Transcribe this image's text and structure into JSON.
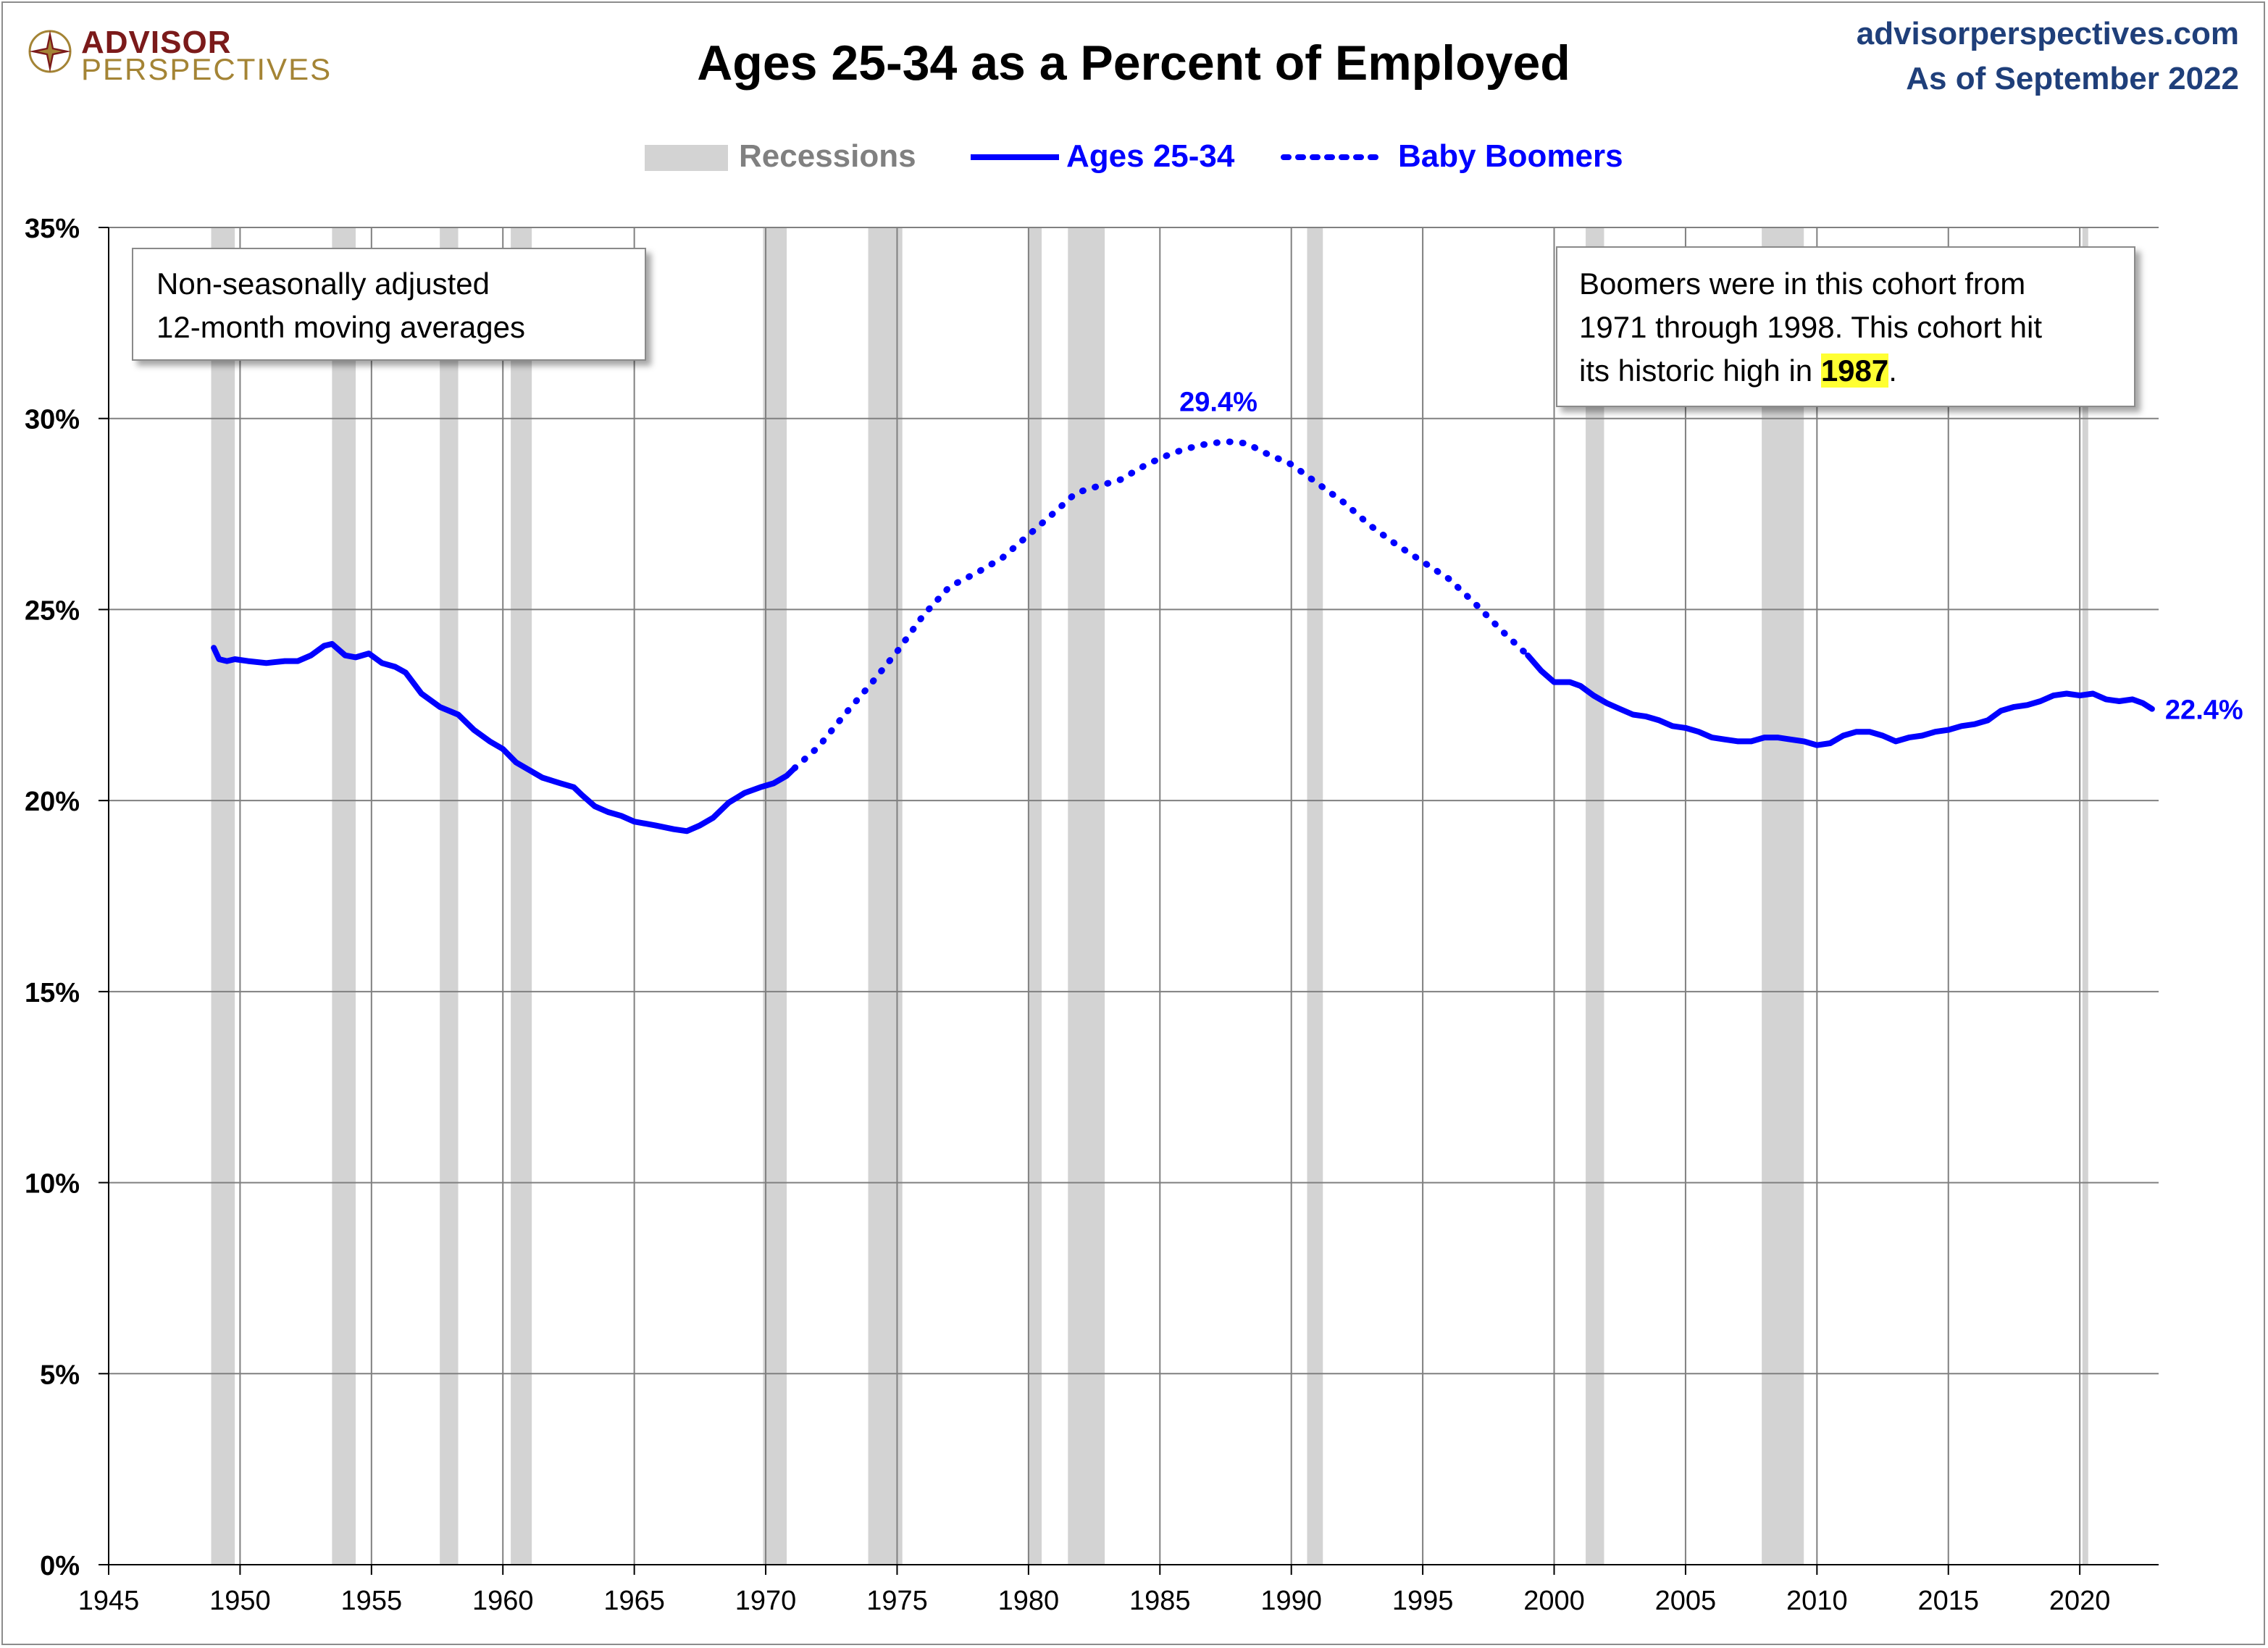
{
  "logo": {
    "line1": "ADVISOR",
    "line2": "PERSPECTIVES",
    "color_line1": "#7b1a1a",
    "color_line2": "#a48435"
  },
  "header": {
    "source": "advisorperspectives.com",
    "as_of": "As of September 2022",
    "source_color": "#1f3f7a"
  },
  "notes": {
    "left": [
      "Non-seasonally adjusted",
      "12-month moving averages"
    ],
    "right_lines": [
      "Boomers were in this cohort from",
      "1971 through 1998. This cohort hit"
    ],
    "right_last_prefix": "its historic high in ",
    "right_highlight": "1987",
    "right_last_suffix": "."
  },
  "colors": {
    "series": "#0000ff",
    "recession": "#d3d3d3",
    "grid": "#808080",
    "axis_text": "#000000",
    "legend_recession_text": "#808080"
  },
  "chart_data": {
    "type": "line",
    "title": "Ages 25-34 as a Percent of Employed",
    "xlim": [
      1945,
      2023
    ],
    "ylim": [
      0,
      35
    ],
    "x_ticks": [
      1945,
      1950,
      1955,
      1960,
      1965,
      1970,
      1975,
      1980,
      1985,
      1990,
      1995,
      2000,
      2005,
      2010,
      2015,
      2020
    ],
    "y_ticks": [
      0,
      5,
      10,
      15,
      20,
      25,
      30,
      35
    ],
    "y_tick_labels": [
      "0%",
      "5%",
      "10%",
      "15%",
      "20%",
      "25%",
      "30%",
      "35%"
    ],
    "grid": true,
    "legend_position": "top-center",
    "legend": [
      {
        "label": "Recessions",
        "kind": "band"
      },
      {
        "label": "Ages 25-34",
        "kind": "solid"
      },
      {
        "label": "Baby Boomers",
        "kind": "dotted"
      }
    ],
    "recessions": [
      [
        1948.9,
        1949.8
      ],
      [
        1953.5,
        1954.4
      ],
      [
        1957.6,
        1958.3
      ],
      [
        1960.3,
        1961.1
      ],
      [
        1969.9,
        1970.8
      ],
      [
        1973.9,
        1975.2
      ],
      [
        1980.0,
        1980.5
      ],
      [
        1981.5,
        1982.9
      ],
      [
        1990.6,
        1991.2
      ],
      [
        2001.2,
        2001.9
      ],
      [
        2007.9,
        2009.5
      ],
      [
        2020.1,
        2020.3
      ]
    ],
    "series": [
      {
        "name": "Ages 25-34",
        "style": "solid",
        "points": [
          [
            1949.0,
            24.0
          ],
          [
            1949.2,
            23.7
          ],
          [
            1949.5,
            23.65
          ],
          [
            1949.8,
            23.7
          ],
          [
            1950.3,
            23.65
          ],
          [
            1951.0,
            23.6
          ],
          [
            1951.7,
            23.65
          ],
          [
            1952.2,
            23.65
          ],
          [
            1952.7,
            23.8
          ],
          [
            1953.2,
            24.05
          ],
          [
            1953.5,
            24.1
          ],
          [
            1954.0,
            23.8
          ],
          [
            1954.4,
            23.75
          ],
          [
            1954.9,
            23.85
          ],
          [
            1955.4,
            23.6
          ],
          [
            1955.9,
            23.5
          ],
          [
            1956.3,
            23.35
          ],
          [
            1956.9,
            22.8
          ],
          [
            1957.6,
            22.45
          ],
          [
            1958.3,
            22.25
          ],
          [
            1958.9,
            21.85
          ],
          [
            1959.5,
            21.55
          ],
          [
            1960.0,
            21.35
          ],
          [
            1960.5,
            21.0
          ],
          [
            1961.0,
            20.8
          ],
          [
            1961.5,
            20.6
          ],
          [
            1962.2,
            20.45
          ],
          [
            1962.7,
            20.35
          ],
          [
            1963.0,
            20.15
          ],
          [
            1963.5,
            19.85
          ],
          [
            1964.0,
            19.7
          ],
          [
            1964.5,
            19.6
          ],
          [
            1965.0,
            19.45
          ],
          [
            1965.8,
            19.35
          ],
          [
            1966.5,
            19.25
          ],
          [
            1967.0,
            19.2
          ],
          [
            1967.5,
            19.35
          ],
          [
            1968.0,
            19.55
          ],
          [
            1968.6,
            19.95
          ],
          [
            1969.2,
            20.2
          ],
          [
            1969.8,
            20.35
          ],
          [
            1970.3,
            20.45
          ],
          [
            1970.8,
            20.65
          ],
          [
            1971.1,
            20.85
          ]
        ]
      },
      {
        "name": "Baby Boomers",
        "style": "dotted",
        "points": [
          [
            1971.1,
            20.85
          ],
          [
            1972.0,
            21.4
          ],
          [
            1973.0,
            22.25
          ],
          [
            1974.0,
            23.05
          ],
          [
            1975.0,
            23.9
          ],
          [
            1976.0,
            24.85
          ],
          [
            1977.0,
            25.6
          ],
          [
            1978.0,
            25.95
          ],
          [
            1979.0,
            26.35
          ],
          [
            1980.0,
            26.95
          ],
          [
            1981.0,
            27.55
          ],
          [
            1981.8,
            28.05
          ],
          [
            1982.5,
            28.2
          ],
          [
            1983.5,
            28.4
          ],
          [
            1984.5,
            28.8
          ],
          [
            1985.5,
            29.1
          ],
          [
            1986.5,
            29.3
          ],
          [
            1987.5,
            29.4
          ],
          [
            1988.3,
            29.35
          ],
          [
            1989.0,
            29.1
          ],
          [
            1990.0,
            28.8
          ],
          [
            1991.0,
            28.3
          ],
          [
            1992.0,
            27.8
          ],
          [
            1993.0,
            27.2
          ],
          [
            1994.0,
            26.7
          ],
          [
            1995.0,
            26.25
          ],
          [
            1996.0,
            25.8
          ],
          [
            1997.0,
            25.15
          ],
          [
            1998.0,
            24.45
          ],
          [
            1999.0,
            23.8
          ]
        ]
      },
      {
        "name": "Ages 25-34",
        "style": "solid",
        "points": [
          [
            1999.0,
            23.8
          ],
          [
            1999.5,
            23.4
          ],
          [
            2000.0,
            23.1
          ],
          [
            2000.6,
            23.1
          ],
          [
            2001.0,
            23.0
          ],
          [
            2001.5,
            22.75
          ],
          [
            2002.0,
            22.55
          ],
          [
            2002.5,
            22.4
          ],
          [
            2003.0,
            22.25
          ],
          [
            2003.5,
            22.2
          ],
          [
            2004.0,
            22.1
          ],
          [
            2004.5,
            21.95
          ],
          [
            2005.0,
            21.9
          ],
          [
            2005.5,
            21.8
          ],
          [
            2006.0,
            21.65
          ],
          [
            2006.5,
            21.6
          ],
          [
            2007.0,
            21.55
          ],
          [
            2007.5,
            21.55
          ],
          [
            2008.0,
            21.65
          ],
          [
            2008.5,
            21.65
          ],
          [
            2009.0,
            21.6
          ],
          [
            2009.5,
            21.55
          ],
          [
            2010.0,
            21.45
          ],
          [
            2010.5,
            21.5
          ],
          [
            2011.0,
            21.7
          ],
          [
            2011.5,
            21.8
          ],
          [
            2012.0,
            21.8
          ],
          [
            2012.5,
            21.7
          ],
          [
            2013.0,
            21.55
          ],
          [
            2013.5,
            21.65
          ],
          [
            2014.0,
            21.7
          ],
          [
            2014.5,
            21.8
          ],
          [
            2015.0,
            21.85
          ],
          [
            2015.5,
            21.95
          ],
          [
            2016.0,
            22.0
          ],
          [
            2016.5,
            22.1
          ],
          [
            2017.0,
            22.35
          ],
          [
            2017.5,
            22.45
          ],
          [
            2018.0,
            22.5
          ],
          [
            2018.5,
            22.6
          ],
          [
            2019.0,
            22.75
          ],
          [
            2019.5,
            22.8
          ],
          [
            2020.0,
            22.75
          ],
          [
            2020.5,
            22.8
          ],
          [
            2021.0,
            22.65
          ],
          [
            2021.5,
            22.6
          ],
          [
            2022.0,
            22.65
          ],
          [
            2022.4,
            22.55
          ],
          [
            2022.75,
            22.4
          ]
        ]
      }
    ],
    "annotations": [
      {
        "text": "29.4%",
        "x": 1987.5,
        "y": 29.4
      },
      {
        "text": "22.4%",
        "x": 2022.75,
        "y": 22.4
      }
    ]
  }
}
